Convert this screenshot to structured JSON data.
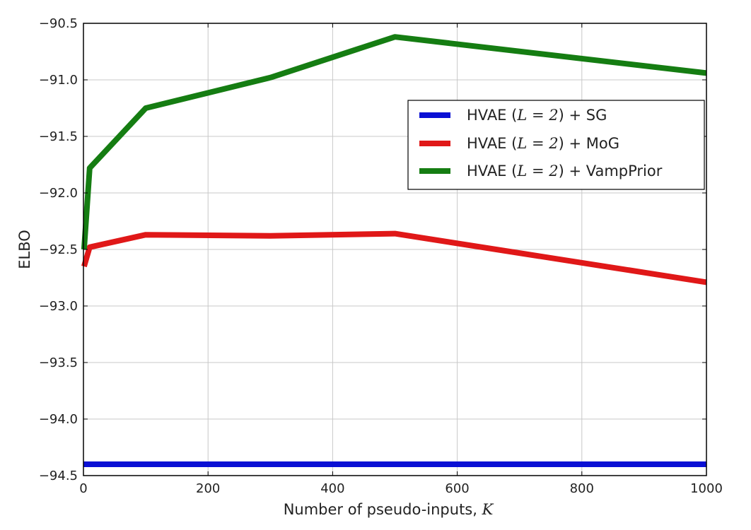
{
  "chart_data": {
    "type": "line",
    "xlabel": "Number of pseudo-inputs, ",
    "xlabel_math": "K",
    "ylabel": "ELBO",
    "xlim": [
      0,
      1000
    ],
    "ylim": [
      -94.5,
      -90.5
    ],
    "grid": true,
    "legend_position": "upper-right",
    "xticks": [
      "0",
      "200",
      "400",
      "600",
      "800",
      "1000"
    ],
    "xtick_values": [
      0,
      200,
      400,
      600,
      800,
      1000
    ],
    "yticks": [
      "−90.5",
      "−91.0",
      "−91.5",
      "−92.0",
      "−92.5",
      "−93.0",
      "−93.5",
      "−94.0",
      "−94.5"
    ],
    "ytick_values": [
      -90.5,
      -91.0,
      -91.5,
      -92.0,
      -92.5,
      -93.0,
      -93.5,
      -94.0,
      -94.5
    ],
    "series": [
      {
        "name": "HVAE (L = 2) + SG",
        "label_prefix": "HVAE (",
        "label_math": "L",
        "label_eq": " = 2",
        "label_suffix": ") + SG",
        "color": "#0a10d4",
        "x": [
          0,
          1000
        ],
        "values": [
          -94.4,
          -94.4
        ]
      },
      {
        "name": "HVAE (L = 2) + MoG",
        "label_prefix": "HVAE (",
        "label_math": "L",
        "label_eq": " = 2",
        "label_suffix": ") + MoG",
        "color": "#e01818",
        "x": [
          1,
          10,
          100,
          300,
          500,
          1000
        ],
        "values": [
          -92.65,
          -92.48,
          -92.37,
          -92.38,
          -92.36,
          -92.79
        ]
      },
      {
        "name": "HVAE (L = 2) + VampPrior",
        "label_prefix": "HVAE (",
        "label_math": "L",
        "label_eq": " = 2",
        "label_suffix": ") + VampPrior",
        "color": "#157d12",
        "x": [
          1,
          10,
          100,
          300,
          500,
          1000
        ],
        "values": [
          -92.5,
          -91.78,
          -91.25,
          -90.98,
          -90.62,
          -90.94
        ]
      }
    ]
  }
}
